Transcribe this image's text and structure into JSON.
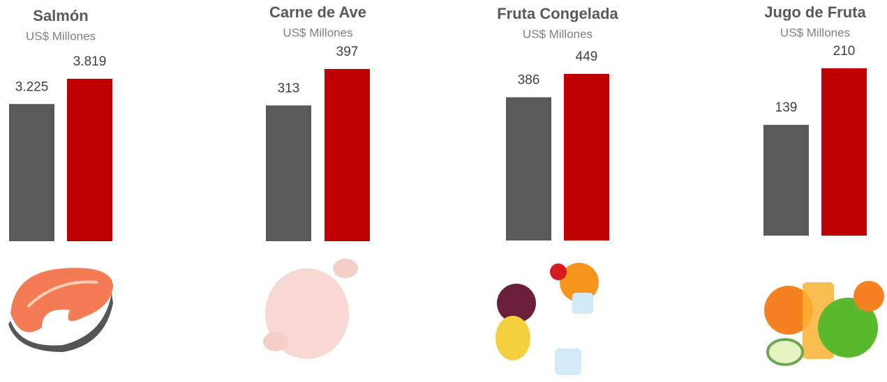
{
  "chart_data": [
    {
      "type": "bar",
      "title": "Salmón",
      "subtitle": "US$ Millones",
      "values": [
        3225,
        3819
      ],
      "value_labels": [
        "3.225",
        "3.819"
      ],
      "colors": [
        "#595959",
        "#c00000"
      ]
    },
    {
      "type": "bar",
      "title": "Carne de Ave",
      "subtitle": "US$ Millones",
      "values": [
        313,
        397
      ],
      "value_labels": [
        "313",
        "397"
      ],
      "colors": [
        "#595959",
        "#c00000"
      ]
    },
    {
      "type": "bar",
      "title": "Fruta Congelada",
      "subtitle": "US$ Millones",
      "values": [
        386,
        449
      ],
      "value_labels": [
        "386",
        "449"
      ],
      "colors": [
        "#595959",
        "#c00000"
      ]
    },
    {
      "type": "bar",
      "title": "Jugo de Fruta",
      "subtitle": "US$ Millones",
      "values": [
        139,
        210
      ],
      "value_labels": [
        "139",
        "210"
      ],
      "colors": [
        "#595959",
        "#c00000"
      ]
    }
  ]
}
